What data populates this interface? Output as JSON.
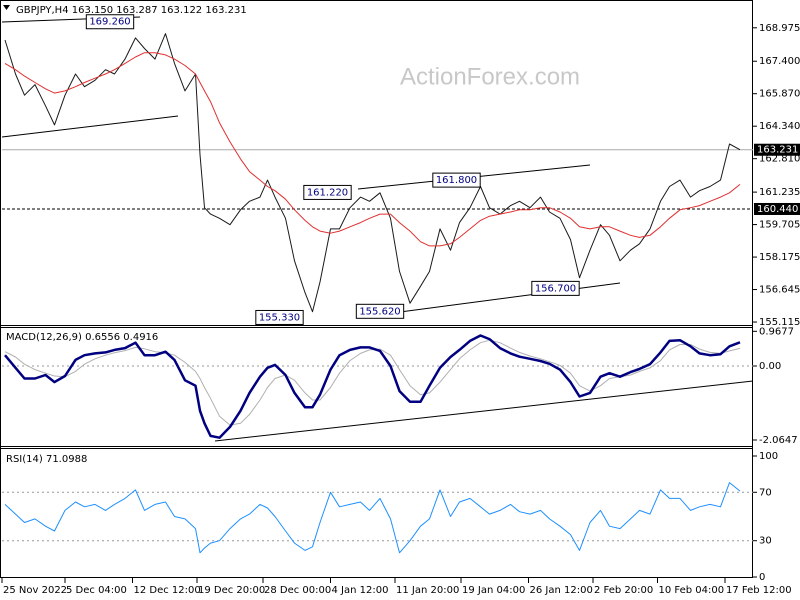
{
  "chart_data": [
    {
      "type": "line",
      "title": "GBPJPY,H4  163.150 163.287 163.122 163.231",
      "watermark": "ActionForex.com",
      "xlim": [
        0,
        500
      ],
      "ylim": [
        154.975,
        170.19
      ],
      "yticks": [
        168.975,
        {
          "value": 167.4,
          "label": "167.400"
        },
        {
          "value": 165.87,
          "label": "165.870"
        },
        {
          "value": 164.34,
          "label": "164.340"
        },
        {
          "value": 162.81,
          "label": "162.810"
        },
        161.235,
        159.705,
        158.175,
        156.645,
        155.115
      ],
      "grid": false,
      "x": [
        2,
        9,
        15,
        22,
        29,
        35,
        42,
        49,
        55,
        62,
        69,
        75,
        82,
        89,
        95,
        102,
        109,
        115,
        122,
        129,
        132,
        135,
        139,
        145,
        152,
        159,
        165,
        172,
        177,
        182,
        189,
        195,
        202,
        207,
        212,
        219,
        225,
        232,
        239,
        245,
        252,
        259,
        265,
        272,
        279,
        285,
        292,
        299,
        305,
        312,
        319,
        325,
        332,
        339,
        345,
        352,
        359,
        365,
        372,
        379,
        385,
        392,
        399,
        405,
        412,
        419,
        425,
        432,
        439,
        445,
        452,
        459,
        465,
        472,
        479,
        485,
        492
      ],
      "series": [
        {
          "name": "GBPJPY",
          "color": "#1a1a1a",
          "values": [
            168.4,
            166.8,
            165.8,
            166.3,
            165.3,
            164.4,
            165.8,
            166.8,
            166.2,
            166.5,
            167.0,
            166.8,
            167.5,
            168.5,
            168.0,
            167.5,
            168.7,
            167.3,
            166.0,
            166.8,
            163.0,
            160.5,
            160.2,
            160.0,
            159.7,
            160.4,
            160.8,
            161.0,
            161.8,
            161.0,
            160.0,
            158.0,
            156.5,
            155.6,
            157.0,
            159.5,
            159.5,
            160.5,
            161.0,
            160.8,
            161.2,
            160.0,
            157.5,
            156.0,
            156.8,
            157.5,
            159.5,
            158.5,
            159.8,
            160.5,
            161.5,
            160.5,
            160.2,
            160.6,
            160.8,
            160.5,
            161.0,
            160.3,
            160.0,
            159.0,
            157.2,
            158.5,
            159.7,
            159.2,
            158.0,
            158.5,
            158.8,
            159.5,
            160.8,
            161.5,
            161.8,
            161.0,
            161.3,
            161.5,
            161.8,
            163.5,
            163.231
          ]
        },
        {
          "name": "MA",
          "color": "#e03030",
          "values": [
            167.3,
            167.0,
            166.7,
            166.4,
            166.1,
            165.9,
            166.0,
            166.2,
            166.4,
            166.6,
            166.8,
            167.0,
            167.3,
            167.6,
            167.8,
            167.8,
            167.7,
            167.5,
            167.2,
            166.8,
            166.4,
            166.0,
            165.5,
            164.5,
            163.6,
            162.8,
            162.2,
            161.8,
            161.5,
            161.3,
            160.9,
            160.4,
            159.9,
            159.6,
            159.4,
            159.3,
            159.4,
            159.6,
            159.8,
            160.0,
            160.2,
            160.2,
            159.8,
            159.4,
            158.9,
            158.7,
            158.7,
            158.8,
            159.1,
            159.5,
            159.9,
            160.1,
            160.2,
            160.3,
            160.4,
            160.4,
            160.5,
            160.5,
            160.3,
            160.0,
            159.6,
            159.5,
            159.6,
            159.6,
            159.4,
            159.2,
            159.1,
            159.2,
            159.6,
            160.0,
            160.4,
            160.5,
            160.6,
            160.8,
            161.0,
            161.2,
            161.6
          ]
        }
      ],
      "price_lines": [
        {
          "value": 163.231,
          "label": "163.231",
          "dashed": false
        },
        {
          "value": 160.44,
          "label": "160.440",
          "dashed": true
        }
      ],
      "annotations": [
        {
          "label": "169.260",
          "value": 169.26,
          "x": 72
        },
        {
          "label": "161.220",
          "value": 161.22,
          "x": 217
        },
        {
          "label": "161.800",
          "value": 161.8,
          "x": 303
        },
        {
          "label": "155.330",
          "value": 155.33,
          "x": 185
        },
        {
          "label": "155.620",
          "value": 155.62,
          "x": 252
        },
        {
          "label": "156.700",
          "value": 156.7,
          "x": 369
        }
      ]
    },
    {
      "type": "line",
      "title": "MACD(12,26,9) 0.6556 0.4916",
      "xlim": [
        0,
        500
      ],
      "ylim": [
        -2.26,
        1.06
      ],
      "yticks": [
        0.9677,
        {
          "value": 0,
          "label": "0.00"
        },
        -2.0647
      ],
      "grid": false,
      "reference_lines": [
        0
      ],
      "x": [
        2,
        9,
        15,
        22,
        29,
        35,
        42,
        49,
        55,
        62,
        69,
        75,
        82,
        89,
        95,
        102,
        109,
        115,
        122,
        129,
        132,
        135,
        139,
        145,
        152,
        159,
        165,
        172,
        177,
        182,
        189,
        195,
        202,
        207,
        212,
        219,
        225,
        232,
        239,
        245,
        252,
        259,
        265,
        272,
        279,
        285,
        292,
        299,
        305,
        312,
        319,
        325,
        332,
        339,
        345,
        352,
        359,
        365,
        372,
        379,
        385,
        392,
        399,
        405,
        412,
        419,
        425,
        432,
        439,
        445,
        452,
        459,
        465,
        472,
        479,
        485,
        492
      ],
      "series": [
        {
          "name": "Signal",
          "color": "#b0b0b0",
          "line_width": 1,
          "values": [
            0.4,
            0.25,
            0.05,
            -0.1,
            -0.2,
            -0.28,
            -0.3,
            -0.15,
            0.05,
            0.2,
            0.3,
            0.37,
            0.43,
            0.52,
            0.48,
            0.4,
            0.37,
            0.3,
            0.1,
            -0.15,
            -0.35,
            -0.6,
            -0.9,
            -1.4,
            -1.65,
            -1.6,
            -1.35,
            -0.95,
            -0.6,
            -0.35,
            -0.25,
            -0.4,
            -0.75,
            -0.95,
            -0.95,
            -0.6,
            -0.2,
            0.15,
            0.35,
            0.45,
            0.47,
            0.3,
            -0.1,
            -0.55,
            -0.8,
            -0.75,
            -0.45,
            -0.1,
            0.2,
            0.45,
            0.65,
            0.72,
            0.65,
            0.5,
            0.38,
            0.28,
            0.2,
            0.12,
            0.02,
            -0.2,
            -0.55,
            -0.7,
            -0.55,
            -0.35,
            -0.3,
            -0.25,
            -0.15,
            -0.05,
            0.15,
            0.45,
            0.6,
            0.6,
            0.47,
            0.38,
            0.35,
            0.42,
            0.49
          ]
        },
        {
          "name": "MACD",
          "color": "#000080",
          "line_width": 2.5,
          "values": [
            0.3,
            -0.05,
            -0.35,
            -0.35,
            -0.25,
            -0.45,
            -0.28,
            0.17,
            0.3,
            0.35,
            0.38,
            0.45,
            0.5,
            0.65,
            0.3,
            0.3,
            0.4,
            0.17,
            -0.4,
            -0.55,
            -1.25,
            -1.6,
            -1.95,
            -2.0,
            -1.7,
            -1.25,
            -0.75,
            -0.3,
            -0.05,
            0.03,
            -0.25,
            -0.75,
            -1.15,
            -1.15,
            -0.8,
            -0.1,
            0.3,
            0.45,
            0.52,
            0.52,
            0.42,
            0.0,
            -0.7,
            -1.0,
            -1.0,
            -0.55,
            -0.05,
            0.25,
            0.45,
            0.7,
            0.85,
            0.75,
            0.5,
            0.35,
            0.26,
            0.2,
            0.14,
            0.06,
            -0.1,
            -0.45,
            -0.85,
            -0.75,
            -0.3,
            -0.2,
            -0.3,
            -0.17,
            -0.08,
            0.05,
            0.38,
            0.7,
            0.72,
            0.55,
            0.35,
            0.3,
            0.33,
            0.55,
            0.66
          ]
        }
      ]
    },
    {
      "type": "line",
      "title": "RSI(14) 71.0988",
      "xlim": [
        0,
        500
      ],
      "ylim": [
        0,
        100
      ],
      "yticks": [
        100,
        70,
        30,
        0
      ],
      "grid": false,
      "reference_lines": [
        70,
        30
      ],
      "xticks": [
        {
          "value": 0,
          "label": "25 Nov 2022"
        },
        {
          "value": 42,
          "label": "5 Dec 04:00"
        },
        {
          "value": 87,
          "label": "12 Dec 12:00"
        },
        {
          "value": 130,
          "label": "19 Dec 20:00"
        },
        {
          "value": 174,
          "label": "28 Dec 00:00"
        },
        {
          "value": 219,
          "label": "4 Jan 12:00"
        },
        {
          "value": 262,
          "label": "11 Jan 20:00"
        },
        {
          "value": 306,
          "label": "19 Jan 04:00"
        },
        {
          "value": 351,
          "label": "26 Jan 12:00"
        },
        {
          "value": 394,
          "label": "2 Feb 20:00"
        },
        {
          "value": 437,
          "label": "10 Feb 04:00"
        },
        {
          "value": 482,
          "label": "17 Feb 12:00"
        }
      ],
      "x": [
        2,
        9,
        15,
        22,
        29,
        35,
        42,
        49,
        55,
        62,
        69,
        75,
        82,
        89,
        95,
        102,
        109,
        115,
        122,
        129,
        132,
        135,
        139,
        145,
        152,
        159,
        165,
        172,
        177,
        182,
        189,
        195,
        202,
        207,
        212,
        219,
        225,
        232,
        239,
        245,
        252,
        259,
        265,
        272,
        279,
        285,
        292,
        299,
        305,
        312,
        319,
        325,
        332,
        339,
        345,
        352,
        359,
        365,
        372,
        379,
        385,
        392,
        399,
        405,
        412,
        419,
        425,
        432,
        439,
        445,
        452,
        459,
        465,
        472,
        479,
        485,
        492
      ],
      "series": [
        {
          "name": "RSI",
          "color": "#1e90ff",
          "line_width": 1,
          "values": [
            60,
            52,
            45,
            48,
            42,
            38,
            55,
            62,
            58,
            60,
            55,
            60,
            65,
            72,
            55,
            60,
            62,
            50,
            48,
            40,
            20,
            24,
            28,
            30,
            40,
            48,
            52,
            60,
            57,
            50,
            38,
            28,
            22,
            25,
            45,
            70,
            58,
            60,
            62,
            55,
            65,
            48,
            20,
            30,
            42,
            48,
            72,
            50,
            62,
            65,
            58,
            52,
            55,
            60,
            54,
            52,
            55,
            48,
            42,
            35,
            22,
            45,
            55,
            42,
            40,
            48,
            55,
            52,
            72,
            65,
            65,
            55,
            58,
            60,
            58,
            78,
            71
          ]
        }
      ]
    }
  ]
}
